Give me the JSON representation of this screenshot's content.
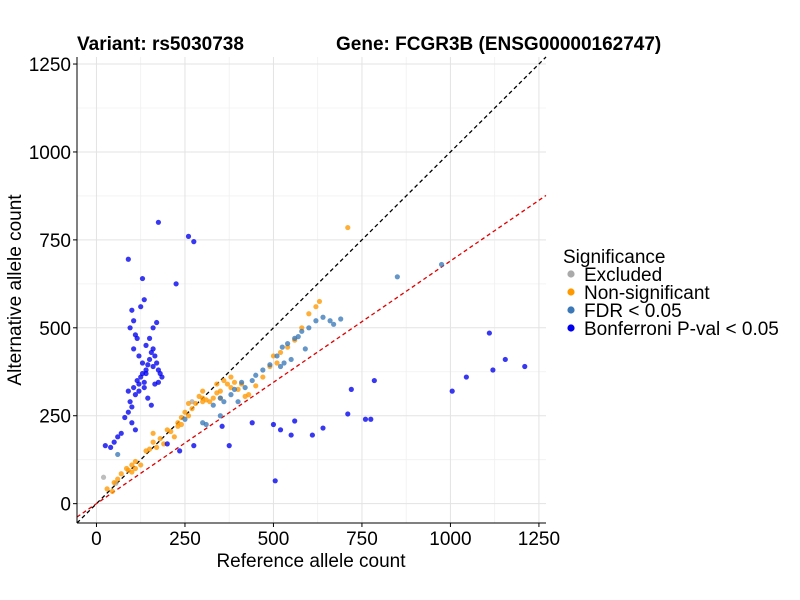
{
  "chart_data": {
    "type": "scatter",
    "title_left": "Variant: rs5030738",
    "title_right": "Gene: FCGR3B (ENSG00000162747)",
    "xlabel": "Reference allele count",
    "ylabel": "Alternative allele count",
    "xlim": [
      -55,
      1270
    ],
    "ylim": [
      -55,
      1270
    ],
    "xticks": [
      0,
      250,
      500,
      750,
      1000,
      1250
    ],
    "yticks": [
      0,
      250,
      500,
      750,
      1000,
      1250
    ],
    "grid": true,
    "legend": {
      "title": "Significance",
      "position": "right",
      "entries": [
        {
          "label": "Excluded",
          "color": "#aaaaaa"
        },
        {
          "label": "Non-significant",
          "color": "#ff9900"
        },
        {
          "label": "FDR < 0.05",
          "color": "#3a78b8"
        },
        {
          "label": "Bonferroni P-val < 0.05",
          "color": "#0000ee"
        }
      ]
    },
    "reference_lines": [
      {
        "name": "y = x",
        "slope": 1.0,
        "intercept": 0,
        "color": "#000000",
        "dash": "4,3"
      },
      {
        "name": "expected ratio",
        "slope": 0.69,
        "intercept": 0,
        "color": "#e00000",
        "dash": "4,3"
      }
    ],
    "series": [
      {
        "color": "#aaaaaa",
        "points": [
          [
            20,
            75
          ],
          [
            55,
            58
          ],
          [
            270,
            290
          ]
        ]
      },
      {
        "color": "#ff9900",
        "points": [
          [
            30,
            42
          ],
          [
            45,
            35
          ],
          [
            60,
            70
          ],
          [
            70,
            85
          ],
          [
            85,
            100
          ],
          [
            90,
            95
          ],
          [
            100,
            110
          ],
          [
            110,
            120
          ],
          [
            125,
            110
          ],
          [
            140,
            150
          ],
          [
            150,
            155
          ],
          [
            160,
            175
          ],
          [
            170,
            160
          ],
          [
            180,
            185
          ],
          [
            190,
            170
          ],
          [
            200,
            210
          ],
          [
            210,
            205
          ],
          [
            220,
            190
          ],
          [
            230,
            230
          ],
          [
            240,
            245
          ],
          [
            250,
            260
          ],
          [
            260,
            250
          ],
          [
            270,
            270
          ],
          [
            280,
            285
          ],
          [
            290,
            305
          ],
          [
            300,
            290
          ],
          [
            310,
            295
          ],
          [
            320,
            290
          ],
          [
            330,
            300
          ],
          [
            340,
            315
          ],
          [
            350,
            320
          ],
          [
            360,
            350
          ],
          [
            370,
            340
          ],
          [
            380,
            360
          ],
          [
            390,
            345
          ],
          [
            400,
            325
          ],
          [
            410,
            340
          ],
          [
            420,
            305
          ],
          [
            430,
            310
          ],
          [
            450,
            335
          ],
          [
            470,
            360
          ],
          [
            490,
            390
          ],
          [
            500,
            420
          ],
          [
            510,
            400
          ],
          [
            520,
            430
          ],
          [
            540,
            445
          ],
          [
            560,
            465
          ],
          [
            580,
            500
          ],
          [
            600,
            540
          ],
          [
            620,
            560
          ],
          [
            630,
            575
          ],
          [
            710,
            785
          ],
          [
            50,
            60
          ],
          [
            110,
            100
          ],
          [
            160,
            200
          ],
          [
            240,
            225
          ],
          [
            300,
            300
          ],
          [
            350,
            300
          ],
          [
            380,
            330
          ],
          [
            100,
            90
          ],
          [
            230,
            220
          ],
          [
            300,
            320
          ],
          [
            340,
            340
          ],
          [
            260,
            285
          ]
        ]
      },
      {
        "color": "#3a78b8",
        "points": [
          [
            250,
            240
          ],
          [
            300,
            230
          ],
          [
            310,
            225
          ],
          [
            330,
            280
          ],
          [
            350,
            300
          ],
          [
            360,
            290
          ],
          [
            380,
            310
          ],
          [
            390,
            325
          ],
          [
            410,
            345
          ],
          [
            420,
            330
          ],
          [
            440,
            350
          ],
          [
            450,
            365
          ],
          [
            470,
            380
          ],
          [
            490,
            395
          ],
          [
            510,
            420
          ],
          [
            525,
            445
          ],
          [
            540,
            455
          ],
          [
            560,
            470
          ],
          [
            570,
            475
          ],
          [
            580,
            490
          ],
          [
            600,
            500
          ],
          [
            620,
            520
          ],
          [
            640,
            530
          ],
          [
            660,
            520
          ],
          [
            670,
            510
          ],
          [
            690,
            525
          ],
          [
            590,
            440
          ],
          [
            550,
            410
          ],
          [
            530,
            400
          ],
          [
            520,
            390
          ],
          [
            850,
            645
          ],
          [
            975,
            680
          ],
          [
            60,
            140
          ],
          [
            350,
            250
          ],
          [
            400,
            290
          ]
        ]
      },
      {
        "color": "#0000ee",
        "points": [
          [
            25,
            165
          ],
          [
            40,
            160
          ],
          [
            50,
            175
          ],
          [
            60,
            190
          ],
          [
            70,
            200
          ],
          [
            80,
            245
          ],
          [
            90,
            260
          ],
          [
            95,
            290
          ],
          [
            100,
            275
          ],
          [
            105,
            330
          ],
          [
            110,
            310
          ],
          [
            115,
            350
          ],
          [
            120,
            340
          ],
          [
            125,
            360
          ],
          [
            130,
            370
          ],
          [
            135,
            345
          ],
          [
            140,
            380
          ],
          [
            145,
            395
          ],
          [
            150,
            410
          ],
          [
            155,
            430
          ],
          [
            160,
            440
          ],
          [
            165,
            420
          ],
          [
            170,
            400
          ],
          [
            175,
            380
          ],
          [
            180,
            370
          ],
          [
            185,
            360
          ],
          [
            130,
            400
          ],
          [
            140,
            450
          ],
          [
            150,
            470
          ],
          [
            160,
            500
          ],
          [
            170,
            515
          ],
          [
            95,
            500
          ],
          [
            100,
            550
          ],
          [
            105,
            520
          ],
          [
            110,
            480
          ],
          [
            115,
            470
          ],
          [
            125,
            560
          ],
          [
            135,
            580
          ],
          [
            90,
            695
          ],
          [
            175,
            800
          ],
          [
            130,
            640
          ],
          [
            225,
            625
          ],
          [
            260,
            760
          ],
          [
            275,
            745
          ],
          [
            120,
            320
          ],
          [
            165,
            340
          ],
          [
            145,
            300
          ],
          [
            155,
            280
          ],
          [
            135,
            330
          ],
          [
            175,
            345
          ],
          [
            100,
            230
          ],
          [
            110,
            210
          ],
          [
            90,
            320
          ],
          [
            105,
            440
          ],
          [
            120,
            420
          ],
          [
            140,
            370
          ],
          [
            160,
            390
          ],
          [
            355,
            220
          ],
          [
            440,
            230
          ],
          [
            375,
            165
          ],
          [
            500,
            225
          ],
          [
            520,
            210
          ],
          [
            550,
            195
          ],
          [
            560,
            235
          ],
          [
            610,
            195
          ],
          [
            640,
            215
          ],
          [
            710,
            255
          ],
          [
            720,
            325
          ],
          [
            760,
            240
          ],
          [
            775,
            240
          ],
          [
            785,
            350
          ],
          [
            1005,
            320
          ],
          [
            1045,
            360
          ],
          [
            1110,
            485
          ],
          [
            1120,
            380
          ],
          [
            1155,
            410
          ],
          [
            1210,
            390
          ],
          [
            505,
            65
          ],
          [
            235,
            150
          ],
          [
            275,
            165
          ],
          [
            200,
            170
          ]
        ]
      }
    ]
  }
}
